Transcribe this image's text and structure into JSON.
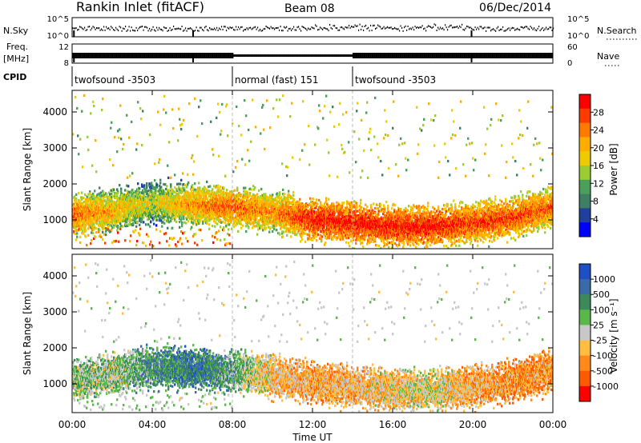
{
  "header": {
    "title": "Rankin Inlet (fitACF)",
    "beam": "Beam 08",
    "date": "06/Dec/2014"
  },
  "top_panels": {
    "nsky_label": "N.Sky",
    "nsky_ticks": [
      "10^5",
      "10^0"
    ],
    "nsearch_label": "N.Search",
    "nsearch_ticks": [
      "10^5",
      "10^0"
    ],
    "freq_label": "Freq.",
    "freq_unit": "[MHz]",
    "freq_ticks": [
      "12",
      "8"
    ],
    "nave_label": "Nave",
    "nave_ticks": [
      "60",
      "0"
    ],
    "cpid_label": "CPID"
  },
  "cpid_segments": [
    {
      "label": "twofsound -3503",
      "start_h": 0,
      "end_h": 8
    },
    {
      "label": "normal (fast) 151",
      "start_h": 8,
      "end_h": 14
    },
    {
      "label": "twofsound -3503",
      "start_h": 14,
      "end_h": 24
    }
  ],
  "x_axis": {
    "title": "Time UT",
    "ticks": [
      "00:00",
      "04:00",
      "08:00",
      "12:00",
      "16:00",
      "20:00",
      "00:00"
    ],
    "range_hours": [
      0,
      24
    ]
  },
  "power_colorbar": {
    "title": "Power [dB]",
    "ticks": [
      "28",
      "24",
      "20",
      "16",
      "12",
      "8",
      "4"
    ],
    "colors": [
      "#ff0000",
      "#ff3a00",
      "#ff7a00",
      "#ffae00",
      "#eccc00",
      "#9acd32",
      "#4aa05a",
      "#3e7f64",
      "#2040a0",
      "#0000ff"
    ]
  },
  "velocity_colorbar": {
    "title": "Velocity [m s⁻¹]",
    "ticks": [
      "1000",
      "500",
      "100",
      "25",
      "-25",
      "-100",
      "-500",
      "-1000"
    ],
    "colors": [
      "#1f4fc4",
      "#3a6aa8",
      "#3c8a5c",
      "#5ab84a",
      "#c8c8c8",
      "#ffbe40",
      "#ff8a1a",
      "#ff5a00",
      "#ff0000"
    ]
  },
  "chart_data": [
    {
      "type": "heatmap",
      "name": "power",
      "ylabel": "Slant Range [km]",
      "xlabel": "",
      "yticks": [
        1000,
        2000,
        3000,
        4000
      ],
      "ylim": [
        200,
        4600
      ],
      "xlim": [
        0,
        24
      ],
      "value_range": [
        0,
        30
      ],
      "dominant_band": [
        {
          "x": 0,
          "y": 1150,
          "v": 24
        },
        {
          "x": 2,
          "y": 1300,
          "v": 20
        },
        {
          "x": 4,
          "y": 1500,
          "v": 16
        },
        {
          "x": 6,
          "y": 1450,
          "v": 22
        },
        {
          "x": 8,
          "y": 1400,
          "v": 24
        },
        {
          "x": 10,
          "y": 1250,
          "v": 22
        },
        {
          "x": 12,
          "y": 1050,
          "v": 28
        },
        {
          "x": 14,
          "y": 950,
          "v": 28
        },
        {
          "x": 16,
          "y": 850,
          "v": 28
        },
        {
          "x": 18,
          "y": 850,
          "v": 28
        },
        {
          "x": 20,
          "y": 950,
          "v": 26
        },
        {
          "x": 22,
          "y": 1100,
          "v": 26
        },
        {
          "x": 24,
          "y": 1400,
          "v": 24
        }
      ]
    },
    {
      "type": "heatmap",
      "name": "velocity",
      "ylabel": "Slant Range [km]",
      "xlabel": "Time UT",
      "yticks": [
        1000,
        2000,
        3000,
        4000
      ],
      "ylim": [
        200,
        4600
      ],
      "xlim": [
        0,
        24
      ],
      "value_range": [
        -1000,
        1000
      ],
      "dominant_band": [
        {
          "x": 0,
          "y": 1150,
          "v": 150
        },
        {
          "x": 2,
          "y": 1300,
          "v": 120
        },
        {
          "x": 4,
          "y": 1500,
          "v": 400
        },
        {
          "x": 6,
          "y": 1450,
          "v": 600
        },
        {
          "x": 8,
          "y": 1400,
          "v": 300
        },
        {
          "x": 10,
          "y": 1250,
          "v": -200
        },
        {
          "x": 12,
          "y": 1050,
          "v": -300
        },
        {
          "x": 14,
          "y": 950,
          "v": -250
        },
        {
          "x": 16,
          "y": 850,
          "v": -150
        },
        {
          "x": 18,
          "y": 850,
          "v": -50
        },
        {
          "x": 20,
          "y": 950,
          "v": -300
        },
        {
          "x": 22,
          "y": 1100,
          "v": -400
        },
        {
          "x": 24,
          "y": 1400,
          "v": -400
        }
      ]
    }
  ]
}
